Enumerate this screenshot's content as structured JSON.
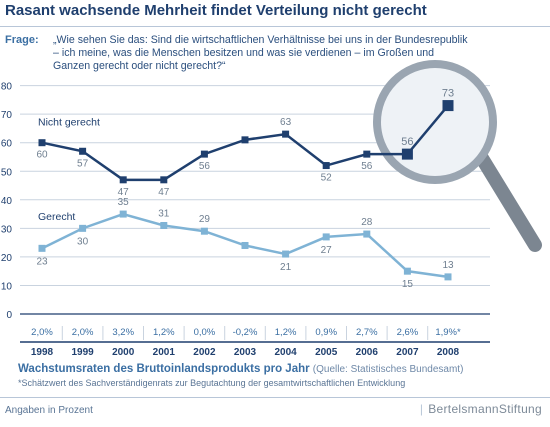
{
  "title": "Rasant wachsende Mehrheit findet Verteilung nicht gerecht",
  "question_label": "Frage:",
  "question_text": "„Wie sehen Sie das: Sind die wirtschaftlichen Verhältnisse bei uns in der Bundesrepublik – ich meine, was die Menschen besitzen und was sie verdienen – im Großen und Ganzen gerecht oder nicht gerecht?“",
  "growth_title": "Wachstumsraten des Bruttoinlandsprodukts pro Jahr",
  "growth_source": "(Quelle: Statistisches Bundesamt)",
  "footnote": "*Schätzwert des Sachverständigenrats zur Begutachtung der gesamtwirtschaftlichen Entwicklung",
  "units": "Angaben in Prozent",
  "brand": "BertelsmannStiftung",
  "colors": {
    "nicht_gerecht": "#1f3f6e",
    "gerecht": "#7fb3d5",
    "axis": "#1f3f6e",
    "grid": "#c9d3df"
  },
  "chart_data": {
    "type": "line",
    "x": [
      "1998",
      "1999",
      "2000",
      "2001",
      "2002",
      "2003",
      "2004",
      "2005",
      "2006",
      "2007",
      "2008"
    ],
    "ylim": [
      0,
      80
    ],
    "yticks": [
      0,
      10,
      20,
      30,
      40,
      50,
      60,
      70,
      80
    ],
    "series": [
      {
        "name": "Nicht gerecht",
        "values": [
          60,
          57,
          47,
          47,
          56,
          61,
          63,
          52,
          56,
          56,
          73
        ],
        "labels": [
          "60",
          "57",
          "47",
          "47",
          "56",
          "",
          "63",
          "52",
          "56",
          "56",
          "73"
        ]
      },
      {
        "name": "Gerecht",
        "values": [
          23,
          30,
          35,
          31,
          29,
          24,
          21,
          27,
          28,
          15,
          13
        ],
        "labels": [
          "23",
          "30",
          "35",
          "31",
          "29",
          "",
          "21",
          "27",
          "28",
          "15",
          "13"
        ]
      }
    ],
    "gdp_growth": [
      "2,0%",
      "2,0%",
      "3,2%",
      "1,2%",
      "0,0%",
      "-0,2%",
      "1,2%",
      "0,9%",
      "2,7%",
      "2,6%",
      "1,9%*"
    ]
  }
}
